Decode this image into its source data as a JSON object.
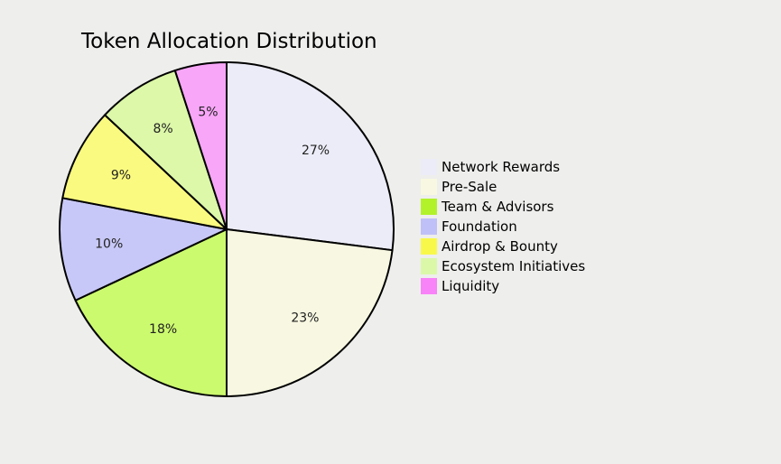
{
  "chart_data": {
    "type": "pie",
    "title": "Token Allocation Distribution",
    "slices": [
      {
        "label": "Network Rewards",
        "value": 27,
        "value_label": "27%",
        "color": "#ececf8"
      },
      {
        "label": "Pre-Sale",
        "value": 23,
        "value_label": "23%",
        "color": "#f8f8e2"
      },
      {
        "label": "Team & Advisors",
        "value": 18,
        "value_label": "18%",
        "color": "#ccfa6f"
      },
      {
        "label": "Foundation",
        "value": 10,
        "value_label": "10%",
        "color": "#c8c8f8"
      },
      {
        "label": "Airdrop & Bounty",
        "value": 9,
        "value_label": "9%",
        "color": "#fafa80"
      },
      {
        "label": "Ecosystem Initiatives",
        "value": 8,
        "value_label": "8%",
        "color": "#dcf8a8"
      },
      {
        "label": "Liquidity",
        "value": 5,
        "value_label": "5%",
        "color": "#f8a6f8"
      }
    ],
    "legend_colors": [
      "#ececf8",
      "#f8f8e2",
      "#b2f22a",
      "#c0c0f8",
      "#f8f84a",
      "#daf8a8",
      "#f882f8"
    ],
    "legend_position": "right",
    "start_angle": "top",
    "direction": "clockwise"
  }
}
